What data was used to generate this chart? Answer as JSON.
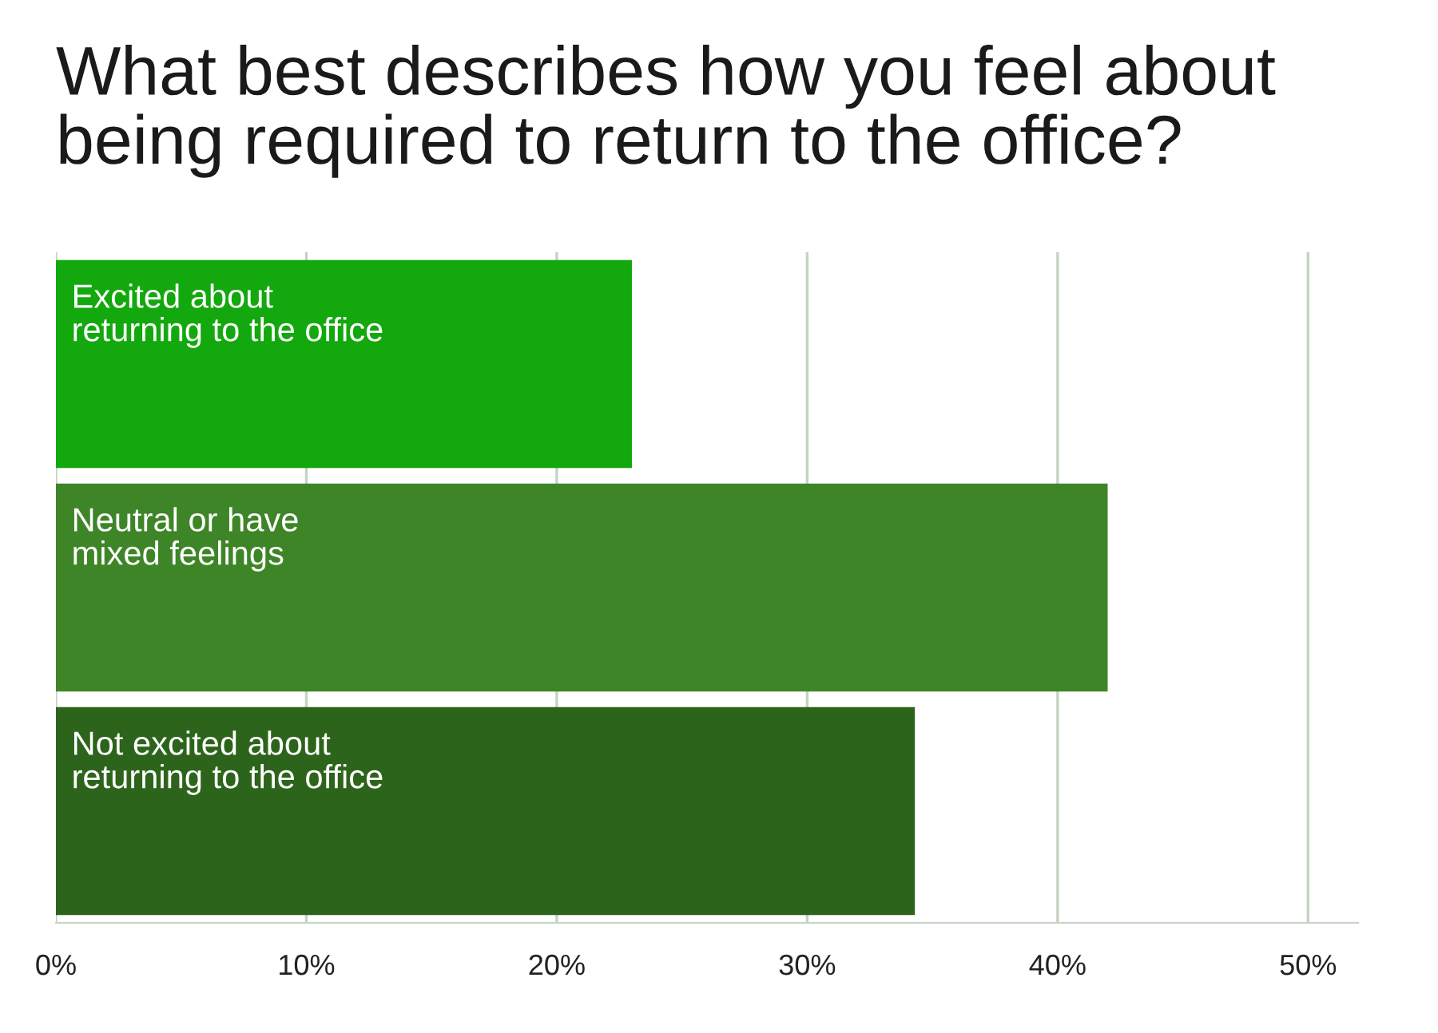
{
  "chart_data": {
    "type": "bar",
    "orientation": "horizontal",
    "title": "What best describes how you feel about\nbeing required to return to the office?",
    "categories": [
      "Excited about\nreturning to the office",
      "Neutral or have\nmixed feelings",
      "Not excited about\nreturning to the office"
    ],
    "values": [
      23,
      42,
      34.3
    ],
    "colors": [
      "#13a80d",
      "#3e8527",
      "#2d641b"
    ],
    "xlim": [
      0,
      52
    ],
    "xticks": [
      {
        "value": 0,
        "label": "0%"
      },
      {
        "value": 10,
        "label": "10%"
      },
      {
        "value": 20,
        "label": "20%"
      },
      {
        "value": 30,
        "label": "30%"
      },
      {
        "value": 40,
        "label": "40%"
      },
      {
        "value": 50,
        "label": "50%"
      }
    ],
    "grid": "x"
  }
}
